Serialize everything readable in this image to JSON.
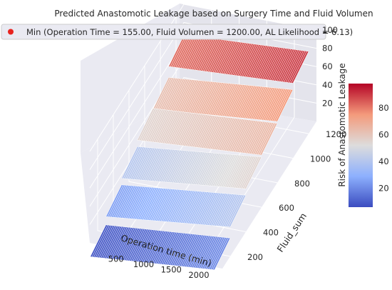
{
  "chart_data": {
    "type": "surface3d",
    "title": "Predicted Anastomotic Leakage based on Surgery Time and Fluid Volumen",
    "xlabel": "Operation time (min)",
    "ylabel": "Fluid_sum",
    "zlabel": "",
    "colorbar_label": "Risk of Anastomotic Leakage",
    "legend": {
      "label": "Min (Operation Time = 155.00, Fluid Volumen = 1200.00, AL Likelihood = 6.13)",
      "marker_color": "#e8231f",
      "placement": "top"
    },
    "x_ticks": [
      "500",
      "1000",
      "1500",
      "2000"
    ],
    "y_ticks": [
      "200",
      "400",
      "600",
      "800",
      "1000",
      "1200"
    ],
    "z_ticks": [
      "20",
      "40",
      "60",
      "80",
      "100"
    ],
    "colorbar_ticks": [
      "20",
      "40",
      "60",
      "80"
    ],
    "xlim": [
      0,
      2400
    ],
    "ylim": [
      100,
      1300
    ],
    "zlim": [
      0,
      100
    ],
    "colorbar_range": [
      6,
      98
    ],
    "colormap": "coolwarm",
    "pane_color": "#eaeaf2",
    "grid": true,
    "surface_rows": [
      {
        "y": 1200,
        "x": [
          150,
          2400
        ],
        "z": [
          82,
          90
        ]
      },
      {
        "y": 1000,
        "x": [
          150,
          2400
        ],
        "z": [
          62,
          75
        ]
      },
      {
        "y": 800,
        "x": [
          150,
          2400
        ],
        "z": [
          55,
          65
        ]
      },
      {
        "y": 600,
        "x": [
          150,
          2400
        ],
        "z": [
          40,
          55
        ]
      },
      {
        "y": 400,
        "x": [
          150,
          2400
        ],
        "z": [
          25,
          40
        ]
      },
      {
        "y": 200,
        "x": [
          150,
          2400
        ],
        "z": [
          8,
          20
        ]
      }
    ]
  }
}
